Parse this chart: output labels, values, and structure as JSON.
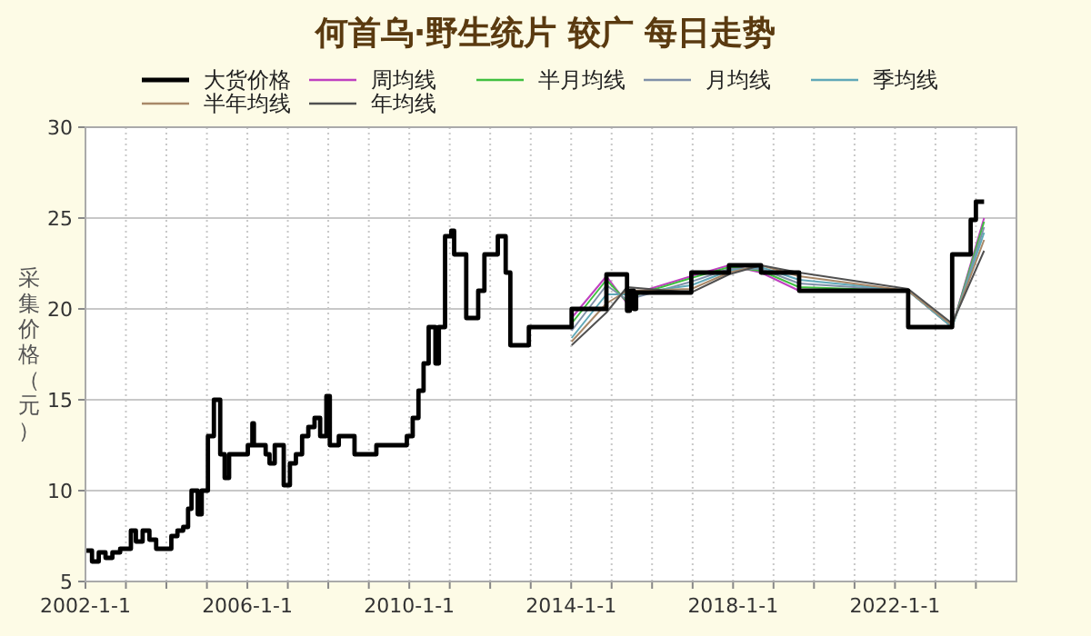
{
  "chart_data": {
    "type": "step",
    "title": "何首乌·野生统片 较广 每日走势",
    "ylabel": "采集价格（元）",
    "xlim": [
      "2002-01-01",
      "2025-01-01"
    ],
    "ylim": [
      5,
      30
    ],
    "yticks": [
      5,
      10,
      15,
      20,
      25,
      30
    ],
    "xticks": [
      {
        "value": "2002-01-01",
        "label": "2002-1-1"
      },
      {
        "value": "2003-01-01",
        "label": null
      },
      {
        "value": "2004-01-01",
        "label": null
      },
      {
        "value": "2005-01-01",
        "label": null
      },
      {
        "value": "2006-01-01",
        "label": "2006-1-1"
      },
      {
        "value": "2007-01-01",
        "label": null
      },
      {
        "value": "2008-01-01",
        "label": null
      },
      {
        "value": "2009-01-01",
        "label": null
      },
      {
        "value": "2010-01-01",
        "label": "2010-1-1"
      },
      {
        "value": "2011-01-01",
        "label": null
      },
      {
        "value": "2012-01-01",
        "label": null
      },
      {
        "value": "2013-01-01",
        "label": null
      },
      {
        "value": "2014-01-01",
        "label": "2014-1-1"
      },
      {
        "value": "2015-01-01",
        "label": null
      },
      {
        "value": "2016-01-01",
        "label": null
      },
      {
        "value": "2017-01-01",
        "label": null
      },
      {
        "value": "2018-01-01",
        "label": "2018-1-1"
      },
      {
        "value": "2019-01-01",
        "label": null
      },
      {
        "value": "2020-01-01",
        "label": null
      },
      {
        "value": "2021-01-01",
        "label": null
      },
      {
        "value": "2022-01-01",
        "label": "2022-1-1"
      },
      {
        "value": "2023-01-01",
        "label": null
      },
      {
        "value": "2024-01-01",
        "label": null
      }
    ],
    "grid": true,
    "legend": "top",
    "series": [
      {
        "name": "大货价格",
        "color": "#000000",
        "x": [
          "2002-01-10",
          "2002-03-01",
          "2002-05-01",
          "2002-07-01",
          "2002-09-01",
          "2002-11-10",
          "2003-02-15",
          "2003-04-01",
          "2003-06-01",
          "2003-08-01",
          "2003-10-01",
          "2004-02-15",
          "2004-04-10",
          "2004-06-01",
          "2004-07-15",
          "2004-08-15",
          "2004-10-10",
          "2004-11-15",
          "2005-01-10",
          "2005-03-05",
          "2005-05-01",
          "2005-06-10",
          "2005-07-20",
          "2006-01-05",
          "2006-02-15",
          "2006-03-01",
          "2006-06-15",
          "2006-07-20",
          "2006-09-05",
          "2006-11-25",
          "2007-01-20",
          "2007-03-15",
          "2007-05-10",
          "2007-07-05",
          "2007-08-30",
          "2007-10-20",
          "2007-12-15",
          "2008-01-15",
          "2008-04-05",
          "2008-08-25",
          "2009-03-10",
          "2009-12-10",
          "2010-02-01",
          "2010-03-25",
          "2010-05-10",
          "2010-06-25",
          "2010-08-25",
          "2010-09-25",
          "2010-11-20",
          "2011-01-15",
          "2011-02-10",
          "2011-05-30",
          "2011-09-15",
          "2011-11-10",
          "2012-03-10",
          "2012-05-20",
          "2012-07-01",
          "2012-12-15",
          "2014-01-05",
          "2014-11-15",
          "2015-05-20",
          "2015-06-15",
          "2015-07-20",
          "2015-08-10",
          "2016-12-20",
          "2017-11-25",
          "2018-09-10",
          "2019-08-20",
          "2022-04-30",
          "2023-06-01",
          "2023-11-15",
          "2024-01-01",
          "2024-03-15"
        ],
        "values": [
          6.7,
          6.1,
          6.6,
          6.3,
          6.6,
          6.8,
          7.8,
          7.2,
          7.8,
          7.3,
          6.8,
          7.5,
          7.8,
          8.0,
          9.0,
          10.0,
          8.7,
          10.0,
          13.0,
          15.0,
          12.0,
          10.7,
          12.0,
          12.5,
          13.7,
          12.5,
          12.0,
          11.5,
          12.5,
          10.3,
          11.5,
          12.0,
          13.0,
          13.5,
          14.0,
          13.0,
          15.2,
          12.5,
          13.0,
          12.0,
          12.5,
          13.0,
          14.0,
          15.5,
          17.0,
          19.0,
          17.0,
          19.0,
          24.0,
          24.3,
          23.0,
          19.5,
          21.0,
          23.0,
          24.0,
          22.0,
          18.0,
          19.0,
          20.0,
          21.9,
          19.9,
          21.0,
          20.0,
          20.9,
          22.0,
          22.4,
          22.0,
          21.0,
          19.0,
          23.0,
          24.9,
          25.9,
          25.9
        ]
      },
      {
        "name": "周均线",
        "color": "#c040c0",
        "type": "line",
        "x": [
          "2014-01-05",
          "2014-11-15",
          "2015-05-20",
          "2015-07-01",
          "2016-12-20",
          "2017-11-25",
          "2018-09-10",
          "2019-08-20",
          "2022-04-30",
          "2023-06-01",
          "2024-03-15"
        ],
        "values": [
          19.5,
          21.8,
          20.3,
          20.8,
          21.8,
          22.4,
          22.0,
          21.0,
          21.0,
          19.0,
          25.0
        ]
      },
      {
        "name": "半月均线",
        "color": "#40c040",
        "type": "line",
        "x": [
          "2014-01-05",
          "2014-11-15",
          "2015-05-20",
          "2015-07-01",
          "2016-12-20",
          "2017-11-25",
          "2018-09-10",
          "2019-08-20",
          "2022-04-30",
          "2023-06-01",
          "2024-03-15"
        ],
        "values": [
          19.2,
          21.6,
          20.4,
          20.7,
          21.7,
          22.3,
          22.1,
          21.2,
          21.0,
          19.0,
          24.8
        ]
      },
      {
        "name": "月均线",
        "color": "#8090a8",
        "type": "line",
        "x": [
          "2014-01-05",
          "2014-11-15",
          "2015-05-20",
          "2016-12-20",
          "2017-11-25",
          "2018-09-10",
          "2019-08-20",
          "2022-04-30",
          "2023-06-01",
          "2024-03-15"
        ],
        "values": [
          18.8,
          21.3,
          20.5,
          21.5,
          22.2,
          22.2,
          21.4,
          21.0,
          19.0,
          24.5
        ]
      },
      {
        "name": "季均线",
        "color": "#60a8b8",
        "type": "line",
        "x": [
          "2014-01-05",
          "2014-11-15",
          "2015-05-20",
          "2016-12-20",
          "2017-11-25",
          "2018-09-10",
          "2019-08-20",
          "2022-04-30",
          "2023-06-01",
          "2024-03-15"
        ],
        "values": [
          18.4,
          20.8,
          20.8,
          21.3,
          22.1,
          22.3,
          21.6,
          21.0,
          19.0,
          24.2
        ]
      },
      {
        "name": "半年均线",
        "color": "#a88868",
        "type": "line",
        "x": [
          "2014-01-05",
          "2014-11-15",
          "2015-05-20",
          "2016-12-20",
          "2017-11-25",
          "2018-09-10",
          "2019-08-20",
          "2022-04-30",
          "2023-06-01",
          "2024-03-15"
        ],
        "values": [
          18.2,
          20.3,
          21.0,
          21.1,
          22.0,
          22.4,
          21.8,
          21.0,
          19.1,
          23.8
        ]
      },
      {
        "name": "年均线",
        "color": "#505050",
        "type": "line",
        "x": [
          "2014-01-05",
          "2014-11-15",
          "2015-05-20",
          "2016-12-20",
          "2017-11-25",
          "2018-09-10",
          "2019-08-20",
          "2022-04-30",
          "2023-06-01",
          "2024-03-15"
        ],
        "values": [
          18.0,
          19.8,
          21.2,
          20.9,
          21.9,
          22.4,
          22.0,
          21.1,
          19.2,
          23.2
        ]
      }
    ]
  }
}
